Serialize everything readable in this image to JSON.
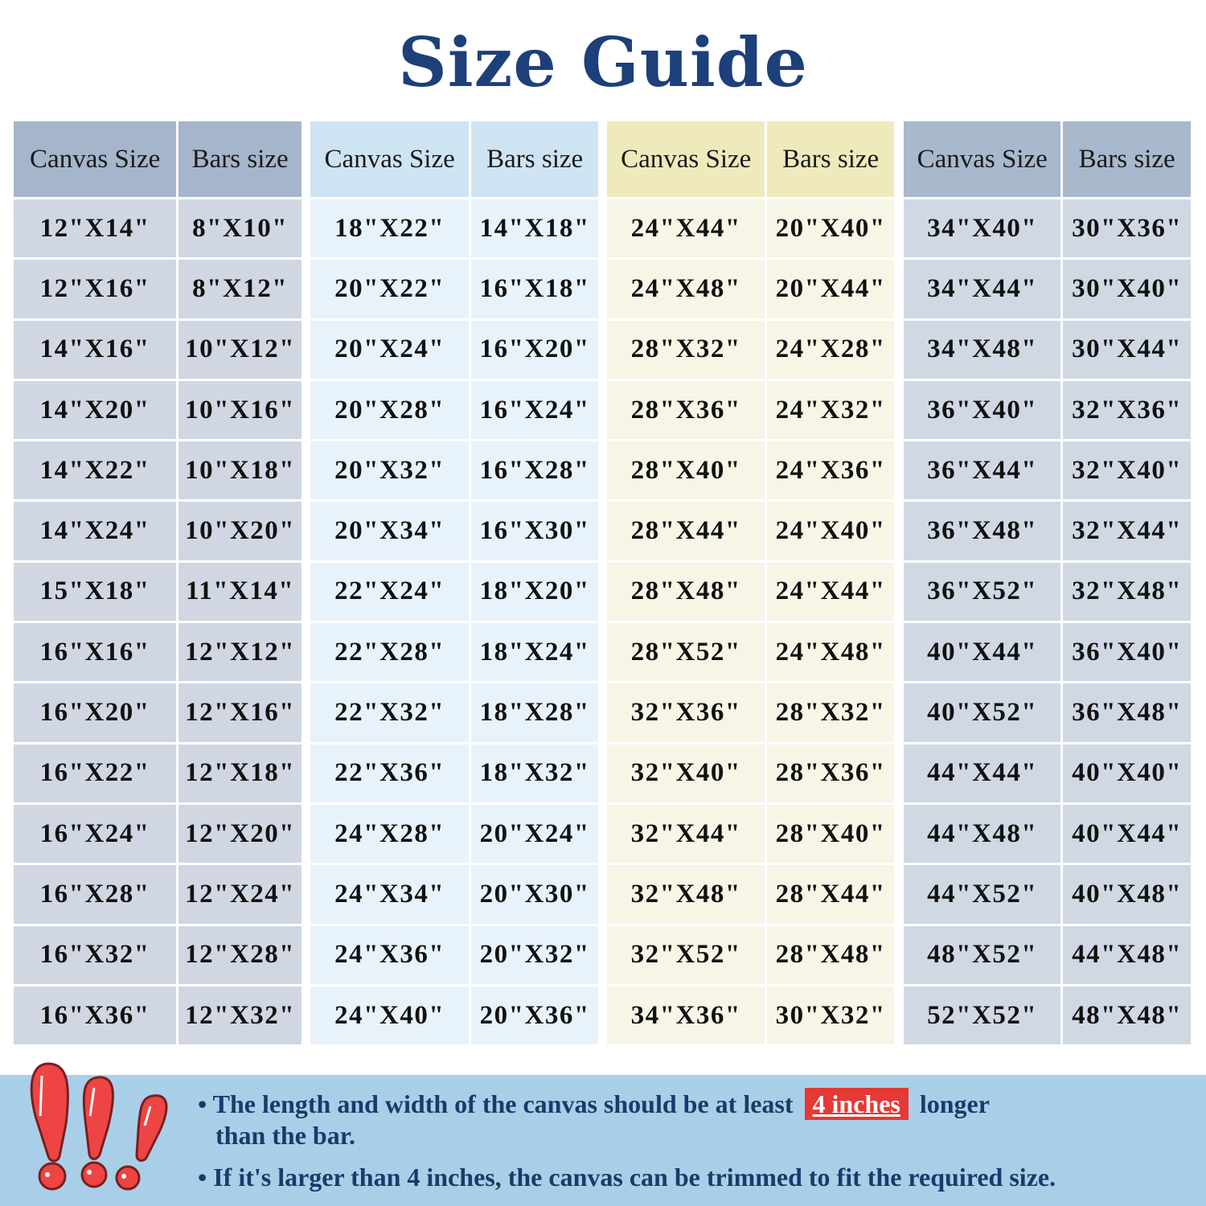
{
  "title": "Size Guide",
  "colors": {
    "title": "#1d3f7a",
    "footer_bg": "#a9cfe8",
    "highlight": "#e53935",
    "text": "#1b3a6b"
  },
  "groups": [
    {
      "header_bg": "#a5b5cc",
      "body_bg": "#d0d7e3",
      "headers": [
        "Canvas Size",
        "Bars size"
      ],
      "rows": [
        [
          "12\"X14\"",
          "8\"X10\""
        ],
        [
          "12\"X16\"",
          "8\"X12\""
        ],
        [
          "14\"X16\"",
          "10\"X12\""
        ],
        [
          "14\"X20\"",
          "10\"X16\""
        ],
        [
          "14\"X22\"",
          "10\"X18\""
        ],
        [
          "14\"X24\"",
          "10\"X20\""
        ],
        [
          "15\"X18\"",
          "11\"X14\""
        ],
        [
          "16\"X16\"",
          "12\"X12\""
        ],
        [
          "16\"X20\"",
          "12\"X16\""
        ],
        [
          "16\"X22\"",
          "12\"X18\""
        ],
        [
          "16\"X24\"",
          "12\"X20\""
        ],
        [
          "16\"X28\"",
          "12\"X24\""
        ],
        [
          "16\"X32\"",
          "12\"X28\""
        ],
        [
          "16\"X36\"",
          "12\"X32\""
        ]
      ]
    },
    {
      "header_bg": "#cfe4f3",
      "body_bg": "#e8f2fa",
      "headers": [
        "Canvas Size",
        "Bars size"
      ],
      "rows": [
        [
          "18\"X22\"",
          "14\"X18\""
        ],
        [
          "20\"X22\"",
          "16\"X18\""
        ],
        [
          "20\"X24\"",
          "16\"X20\""
        ],
        [
          "20\"X28\"",
          "16\"X24\""
        ],
        [
          "20\"X32\"",
          "16\"X28\""
        ],
        [
          "20\"X34\"",
          "16\"X30\""
        ],
        [
          "22\"X24\"",
          "18\"X20\""
        ],
        [
          "22\"X28\"",
          "18\"X24\""
        ],
        [
          "22\"X32\"",
          "18\"X28\""
        ],
        [
          "22\"X36\"",
          "18\"X32\""
        ],
        [
          "24\"X28\"",
          "20\"X24\""
        ],
        [
          "24\"X34\"",
          "20\"X30\""
        ],
        [
          "24\"X36\"",
          "20\"X32\""
        ],
        [
          "24\"X40\"",
          "20\"X36\""
        ]
      ]
    },
    {
      "header_bg": "#efeabc",
      "body_bg": "#f7f5e6",
      "headers": [
        "Canvas Size",
        "Bars size"
      ],
      "rows": [
        [
          "24\"X44\"",
          "20\"X40\""
        ],
        [
          "24\"X48\"",
          "20\"X44\""
        ],
        [
          "28\"X32\"",
          "24\"X28\""
        ],
        [
          "28\"X36\"",
          "24\"X32\""
        ],
        [
          "28\"X40\"",
          "24\"X36\""
        ],
        [
          "28\"X44\"",
          "24\"X40\""
        ],
        [
          "28\"X48\"",
          "24\"X44\""
        ],
        [
          "28\"X52\"",
          "24\"X48\""
        ],
        [
          "32\"X36\"",
          "28\"X32\""
        ],
        [
          "32\"X40\"",
          "28\"X36\""
        ],
        [
          "32\"X44\"",
          "28\"X40\""
        ],
        [
          "32\"X48\"",
          "28\"X44\""
        ],
        [
          "32\"X52\"",
          "28\"X48\""
        ],
        [
          "34\"X36\"",
          "30\"X32\""
        ]
      ]
    },
    {
      "header_bg": "#a8b8cd",
      "body_bg": "#d0d8e4",
      "headers": [
        "Canvas Size",
        "Bars size"
      ],
      "rows": [
        [
          "34\"X40\"",
          "30\"X36\""
        ],
        [
          "34\"X44\"",
          "30\"X40\""
        ],
        [
          "34\"X48\"",
          "30\"X44\""
        ],
        [
          "36\"X40\"",
          "32\"X36\""
        ],
        [
          "36\"X44\"",
          "32\"X40\""
        ],
        [
          "36\"X48\"",
          "32\"X44\""
        ],
        [
          "36\"X52\"",
          "32\"X48\""
        ],
        [
          "40\"X44\"",
          "36\"X40\""
        ],
        [
          "40\"X52\"",
          "36\"X48\""
        ],
        [
          "44\"X44\"",
          "40\"X40\""
        ],
        [
          "44\"X48\"",
          "40\"X44\""
        ],
        [
          "44\"X52\"",
          "40\"X48\""
        ],
        [
          "48\"X52\"",
          "44\"X48\""
        ],
        [
          "52\"X52\"",
          "48\"X48\""
        ]
      ]
    }
  ],
  "notes": {
    "note1_before": "• The length and width of the canvas should be at least",
    "note1_highlight": "4 inches",
    "note1_after": "longer",
    "note1_line2": "than the bar.",
    "note2": "• If it's larger than 4 inches, the canvas can be trimmed to fit the required size."
  },
  "icons": {
    "warning": "exclamation-marks-icon"
  }
}
